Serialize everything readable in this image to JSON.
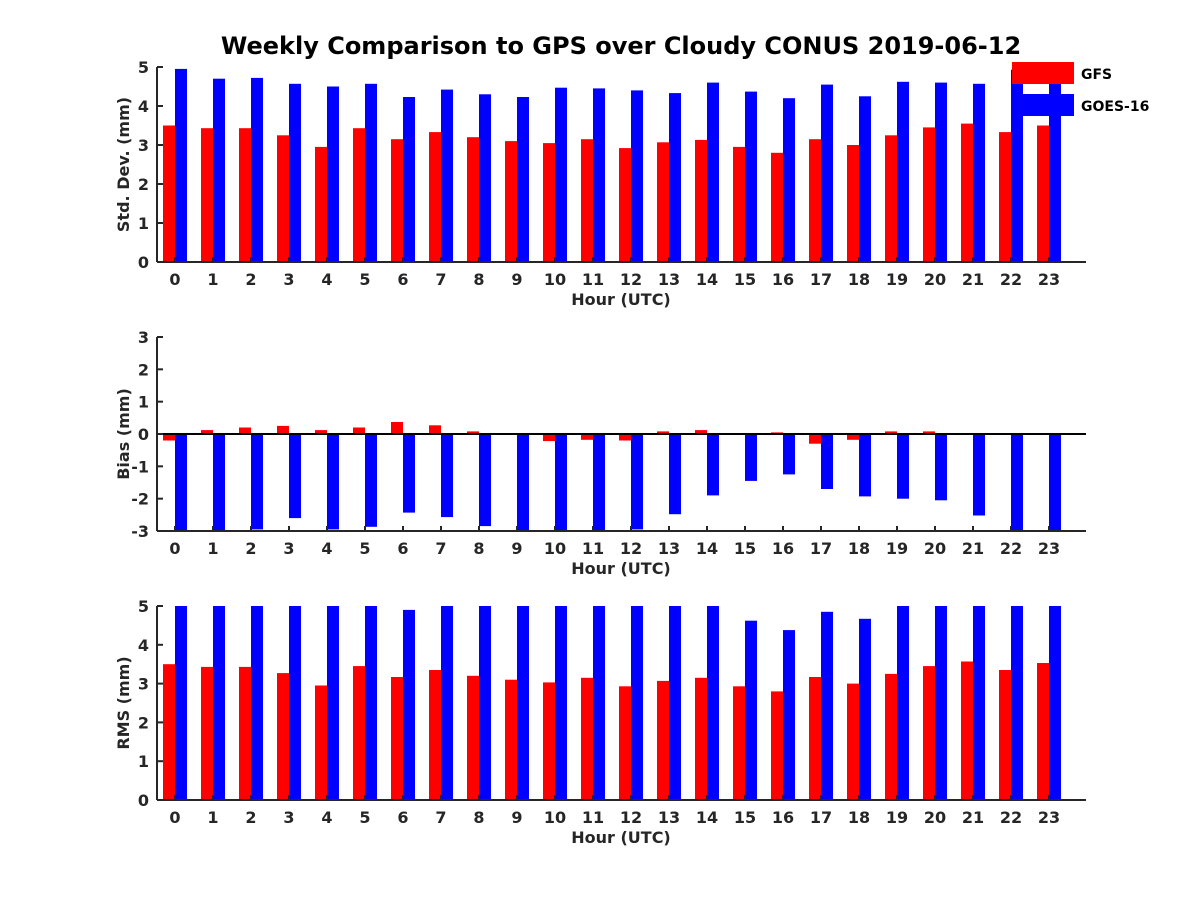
{
  "title": "Weekly Comparison to GPS over Cloudy CONUS 2019-06-12",
  "legend": [
    {
      "name": "GFS",
      "color": "#ff0000"
    },
    {
      "name": "GOES-16",
      "color": "#0000ff"
    }
  ],
  "chart_data": [
    {
      "type": "bar",
      "ylabel": "Std. Dev. (mm)",
      "xlabel": "Hour (UTC)",
      "ylim": [
        0,
        5
      ],
      "yticks": [
        0,
        1,
        2,
        3,
        4,
        5
      ],
      "categories": [
        "0",
        "1",
        "2",
        "3",
        "4",
        "5",
        "6",
        "7",
        "8",
        "9",
        "10",
        "11",
        "12",
        "13",
        "14",
        "15",
        "16",
        "17",
        "18",
        "19",
        "20",
        "21",
        "22",
        "23"
      ],
      "series": [
        {
          "name": "GFS",
          "color": "#ff0000",
          "values": [
            3.5,
            3.43,
            3.43,
            3.25,
            2.95,
            3.43,
            3.15,
            3.33,
            3.2,
            3.1,
            3.05,
            3.15,
            2.92,
            3.07,
            3.13,
            2.95,
            2.8,
            3.15,
            3.0,
            3.25,
            3.45,
            3.55,
            3.33,
            3.5
          ]
        },
        {
          "name": "GOES-16",
          "color": "#0000ff",
          "values": [
            4.95,
            4.7,
            4.72,
            4.57,
            4.5,
            4.57,
            4.23,
            4.42,
            4.3,
            4.23,
            4.47,
            4.45,
            4.4,
            4.33,
            4.6,
            4.37,
            4.2,
            4.55,
            4.25,
            4.62,
            4.6,
            4.57,
            4.93,
            4.93
          ]
        }
      ]
    },
    {
      "type": "bar",
      "ylabel": "Bias (mm)",
      "xlabel": "Hour (UTC)",
      "ylim": [
        -3,
        3
      ],
      "yticks": [
        -3,
        -2,
        -1,
        0,
        1,
        2,
        3
      ],
      "categories": [
        "0",
        "1",
        "2",
        "3",
        "4",
        "5",
        "6",
        "7",
        "8",
        "9",
        "10",
        "11",
        "12",
        "13",
        "14",
        "15",
        "16",
        "17",
        "18",
        "19",
        "20",
        "21",
        "22",
        "23"
      ],
      "series": [
        {
          "name": "GFS",
          "color": "#ff0000",
          "values": [
            -0.2,
            0.12,
            0.2,
            0.25,
            0.12,
            0.2,
            0.37,
            0.27,
            0.08,
            0.0,
            -0.22,
            -0.18,
            -0.2,
            0.08,
            0.12,
            0.0,
            0.05,
            -0.3,
            -0.18,
            0.08,
            0.08,
            0.0,
            0.0,
            0.0
          ]
        },
        {
          "name": "GOES-16",
          "color": "#0000ff",
          "values": [
            -3.0,
            -3.0,
            -2.95,
            -2.6,
            -2.95,
            -2.87,
            -2.43,
            -2.57,
            -2.85,
            -3.0,
            -3.0,
            -3.0,
            -2.95,
            -2.48,
            -1.9,
            -1.45,
            -1.25,
            -1.7,
            -1.93,
            -2.0,
            -2.05,
            -2.52,
            -3.0,
            -3.0
          ]
        }
      ]
    },
    {
      "type": "bar",
      "ylabel": "RMS (mm)",
      "xlabel": "Hour (UTC)",
      "ylim": [
        0,
        5
      ],
      "yticks": [
        0,
        1,
        2,
        3,
        4,
        5
      ],
      "categories": [
        "0",
        "1",
        "2",
        "3",
        "4",
        "5",
        "6",
        "7",
        "8",
        "9",
        "10",
        "11",
        "12",
        "13",
        "14",
        "15",
        "16",
        "17",
        "18",
        "19",
        "20",
        "21",
        "22",
        "23"
      ],
      "series": [
        {
          "name": "GFS",
          "color": "#ff0000",
          "values": [
            3.5,
            3.43,
            3.43,
            3.27,
            2.95,
            3.45,
            3.17,
            3.35,
            3.2,
            3.1,
            3.03,
            3.15,
            2.93,
            3.07,
            3.15,
            2.93,
            2.8,
            3.17,
            3.0,
            3.25,
            3.45,
            3.57,
            3.35,
            3.53
          ]
        },
        {
          "name": "GOES-16",
          "color": "#0000ff",
          "values": [
            5.0,
            5.0,
            5.0,
            5.0,
            5.0,
            5.0,
            4.9,
            5.0,
            5.0,
            5.0,
            5.0,
            5.0,
            5.0,
            5.0,
            5.0,
            4.62,
            4.38,
            4.85,
            4.67,
            5.0,
            5.0,
            5.0,
            5.0,
            5.0
          ]
        }
      ]
    }
  ]
}
